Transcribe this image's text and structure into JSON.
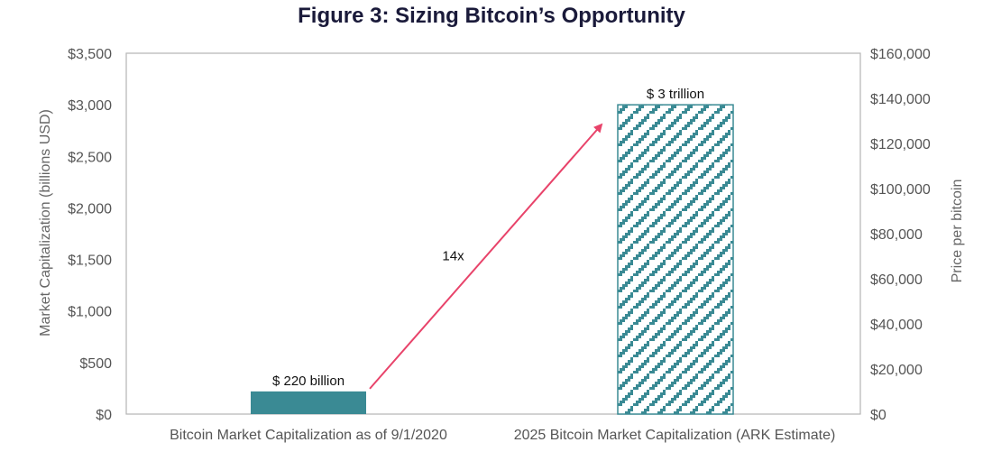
{
  "chart_data": {
    "type": "bar",
    "title": "Figure 3: Sizing Bitcoin’s Opportunity",
    "categories": [
      "Bitcoin Market Capitalization as of 9/1/2020",
      "2025 Bitcoin Market Capitalization (ARK Estimate)"
    ],
    "values": [
      220,
      3000
    ],
    "data_labels": [
      "$ 220 billion",
      "$ 3 trillion"
    ],
    "bar_styles": [
      "solid",
      "hatched"
    ],
    "ylabel": "Market Capitalization (billions USD)",
    "ylim": [
      0,
      3500
    ],
    "yticks": [
      "$0",
      "$500",
      "$1,000",
      "$1,500",
      "$2,000",
      "$2,500",
      "$3,000",
      "$3,500"
    ],
    "y2label": "Price per bitcoin",
    "y2lim": [
      0,
      160000
    ],
    "y2ticks": [
      "$0",
      "$20,000",
      "$40,000",
      "$60,000",
      "$80,000",
      "$100,000",
      "$120,000",
      "$140,000",
      "$160,000"
    ],
    "annotation": {
      "text": "14x",
      "from_category": 0,
      "to_category": 1,
      "color": "#e8436a"
    },
    "colors": {
      "bar": "#3a8a94",
      "frame": "#b5b5b5"
    },
    "grid": false
  }
}
